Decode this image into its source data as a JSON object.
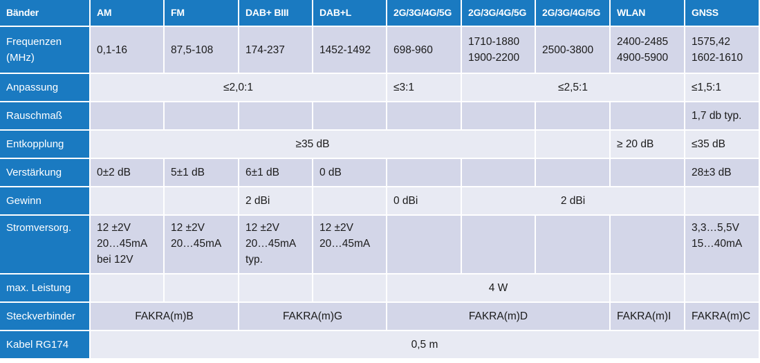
{
  "header": {
    "label": "Bänder",
    "bands": [
      "AM",
      "FM",
      "DAB+ BIII",
      "DAB+L",
      "2G/3G/4G/5G",
      "2G/3G/4G/5G",
      "2G/3G/4G/5G",
      "WLAN",
      "GNSS"
    ]
  },
  "rows": {
    "frequenzen": {
      "label": "Frequenzen\n(MHz)",
      "values": [
        "0,1-16",
        "87,5-108",
        "174-237",
        "1452-1492",
        "698-960",
        "1710-1880\n1900-2200",
        "2500-3800",
        "2400-2485\n4900-5900",
        "1575,42\n1602-1610"
      ]
    },
    "anpassung": {
      "label": "Anpassung",
      "am_dab": "≤2,0:1",
      "lte_low": "≤3:1",
      "lte_high_wlan": "≤2,5:1",
      "gnss": "≤1,5:1"
    },
    "rauschmass": {
      "label": "Rauschmaß",
      "gnss": "1,7 db typ."
    },
    "entkopplung": {
      "label": "Entkopplung",
      "am_lte": "≥35 dB",
      "wlan": "≥ 20 dB",
      "gnss": "≤35 dB"
    },
    "verstaerkung": {
      "label": "Verstärkung",
      "am": "0±2 dB",
      "fm": "5±1 dB",
      "dab_b3": "6±1 dB",
      "dab_l": "0 dB",
      "gnss": "28±3 dB"
    },
    "gewinn": {
      "label": "Gewinn",
      "dab_b3": "2 dBi",
      "lte_low": "0 dBi",
      "lte_high_wlan": "2 dBi"
    },
    "stromversorgung": {
      "label": "Stromversorg.",
      "am": "12 ±2V\n20…45mA\nbei 12V",
      "fm": "12 ±2V\n20…45mA",
      "dab_b3": "12 ±2V\n20…45mA\ntyp.",
      "dab_l": "12 ±2V\n20…45mA",
      "gnss": "3,3…5,5V\n15…40mA"
    },
    "max_leistung": {
      "label": "max. Leistung",
      "lte_all": "4 W"
    },
    "steckverbinder": {
      "label": "Steckverbinder",
      "am_fm": "FAKRA(m)B",
      "dab": "FAKRA(m)G",
      "lte": "FAKRA(m)D",
      "wlan": "FAKRA(m)I",
      "gnss": "FAKRA(m)C"
    },
    "kabel": {
      "label": "Kabel RG174",
      "all": "0,5 m"
    }
  },
  "colors": {
    "header_blue": "#1a7ac1",
    "cell_dark": "#d3d6e8",
    "cell_light": "#e8eaf3"
  }
}
